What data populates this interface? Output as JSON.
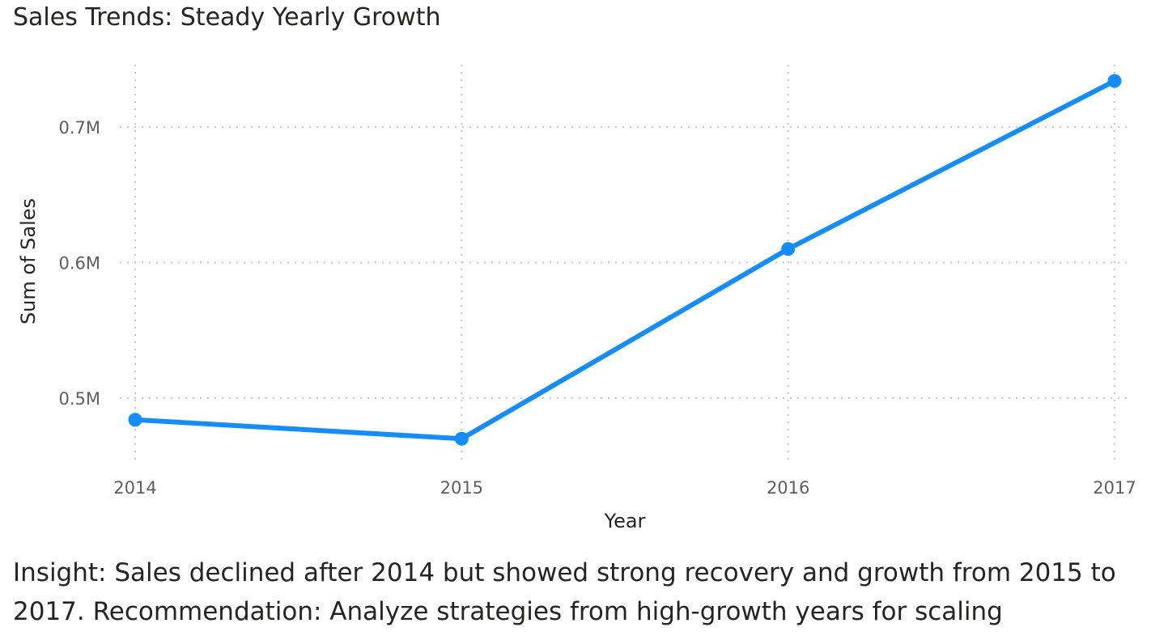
{
  "chart_data": {
    "type": "line",
    "title": "Sales Trends: Steady Yearly Growth",
    "xlabel": "Year",
    "ylabel": "Sum of Sales",
    "x": [
      2014,
      2015,
      2016,
      2017
    ],
    "x_tick_labels": [
      "2014",
      "2015",
      "2016",
      "2017"
    ],
    "y_ticks": [
      0.5,
      0.6,
      0.7
    ],
    "y_tick_labels": [
      "0.5M",
      "0.6M",
      "0.7M"
    ],
    "series": [
      {
        "values": [
          484000,
          470000,
          610000,
          734000
        ],
        "color": "#118dff"
      }
    ],
    "ylim": [
      0.44,
      0.74
    ],
    "y_unit": "M",
    "grid": true,
    "legend": "none",
    "markers": true
  },
  "insight": "Insight: Sales declined after 2014 but showed strong recovery and growth from 2015 to 2017. Recommendation: Analyze strategies from high-growth years for scaling"
}
